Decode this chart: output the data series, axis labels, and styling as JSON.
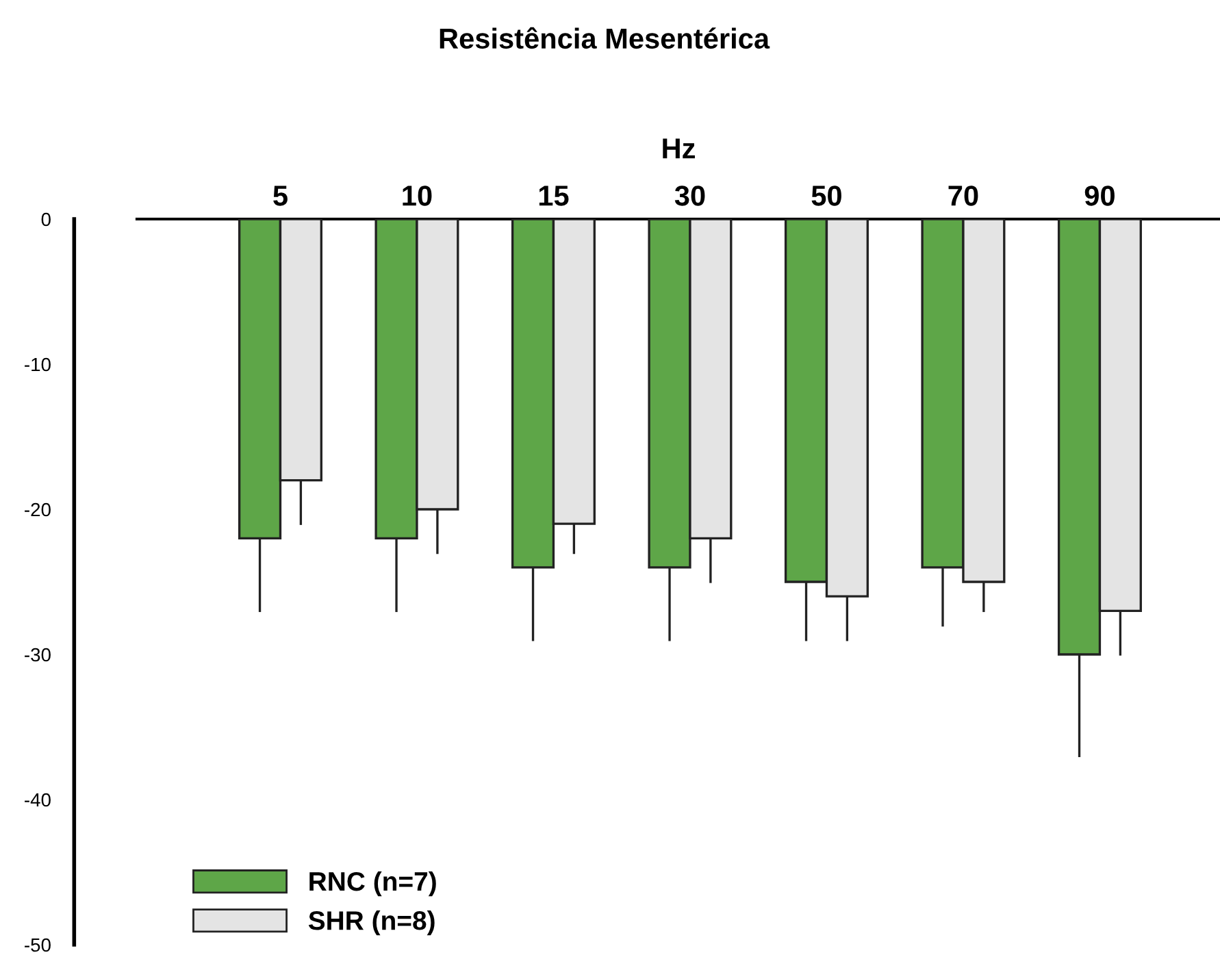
{
  "chart_data": {
    "type": "bar",
    "title": "Resistência Mesentérica",
    "xlabel": "Hz",
    "categories": [
      "5",
      "10",
      "15",
      "30",
      "50",
      "70",
      "90"
    ],
    "series": [
      {
        "name": "RNC (n=7)",
        "color": "#5ea648",
        "values": [
          -22,
          -22,
          -24,
          -24,
          -25,
          -24,
          -30
        ],
        "errors": [
          [
            -27,
            -22
          ],
          [
            -27,
            -22
          ],
          [
            -29,
            -24
          ],
          [
            -29,
            -24
          ],
          [
            -29,
            -25
          ],
          [
            -28,
            -24
          ],
          [
            -37,
            -30
          ]
        ]
      },
      {
        "name": "SHR (n=8)",
        "color": "#e4e4e4",
        "values": [
          -18,
          -20,
          -21,
          -22,
          -26,
          -25,
          -27
        ],
        "errors": [
          [
            -21,
            -18
          ],
          [
            -23,
            -20
          ],
          [
            -23,
            -21
          ],
          [
            -25,
            -22
          ],
          [
            -29,
            -26
          ],
          [
            -27,
            -25
          ],
          [
            -30,
            -27
          ]
        ]
      }
    ],
    "ylim": [
      -50,
      0
    ],
    "yticks": [
      0,
      -10,
      -20,
      -30,
      -40,
      -50
    ],
    "grid": false,
    "legend": "bottom left"
  }
}
